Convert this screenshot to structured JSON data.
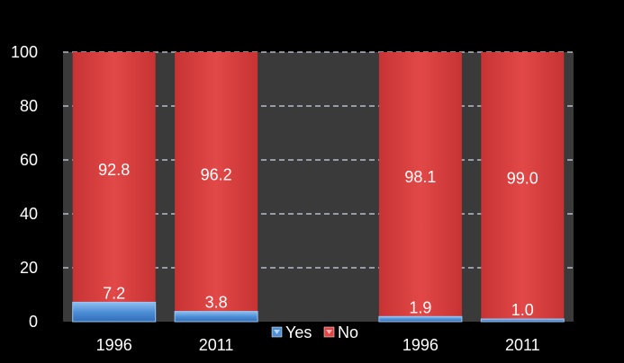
{
  "chart_data": {
    "type": "bar",
    "stacked": true,
    "categories": [
      "1996",
      "2011",
      "",
      "1996",
      "2011"
    ],
    "series": [
      {
        "name": "Yes",
        "values": [
          7.2,
          3.8,
          null,
          1.9,
          1.0
        ]
      },
      {
        "name": "No",
        "values": [
          92.8,
          96.2,
          null,
          98.1,
          99.0
        ]
      }
    ],
    "data_labels": {
      "Yes": [
        "7.2",
        "3.8",
        "",
        "1.9",
        "1.0"
      ],
      "No": [
        "92.8",
        "96.2",
        "",
        "98.1",
        "99.0"
      ]
    },
    "title": "",
    "xlabel": "",
    "ylabel": "",
    "ylim": [
      0,
      100
    ],
    "yticks": [
      "0",
      "20",
      "40",
      "60",
      "80",
      "100"
    ],
    "grid": "horizontal dashed",
    "legend_placement": "bottom-center",
    "colors": {
      "background": "#000000",
      "plot_area": "#3a3a3a",
      "Yes": "#4f8fd6",
      "No": "#e04444",
      "grid": "#d0d8e8",
      "text": "#ffffff"
    }
  }
}
